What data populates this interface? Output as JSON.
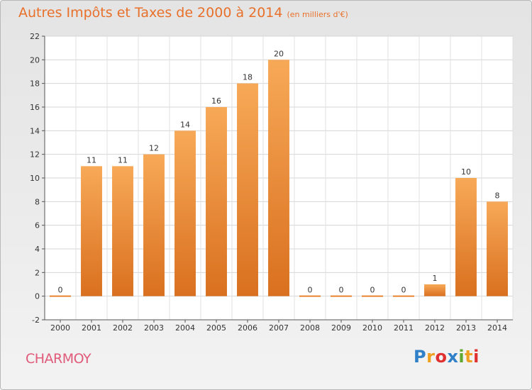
{
  "title": "Autres Impôts et Taxes de 2000 à 2014",
  "unit": "(en milliers d'€)",
  "commune": "CHARMOY",
  "logo": {
    "text": "Proxiti",
    "letters": [
      {
        "ch": "P",
        "color": "#2f80c8"
      },
      {
        "ch": "r",
        "color": "#f0a020"
      },
      {
        "ch": "o",
        "color": "#e03030"
      },
      {
        "ch": "x",
        "color": "#2f80c8"
      },
      {
        "ch": "i",
        "color": "#60a830"
      },
      {
        "ch": "t",
        "color": "#f0a020"
      },
      {
        "ch": "i",
        "color": "#e03030"
      }
    ]
  },
  "chart_data": {
    "type": "bar",
    "categories": [
      "2000",
      "2001",
      "2002",
      "2003",
      "2004",
      "2005",
      "2006",
      "2007",
      "2008",
      "2009",
      "2010",
      "2011",
      "2012",
      "2013",
      "2014"
    ],
    "values": [
      0,
      11,
      11,
      12,
      14,
      16,
      18,
      20,
      0,
      0,
      0,
      0,
      1,
      10,
      8
    ],
    "title": "Autres Impôts et Taxes de 2000 à 2014",
    "subtitle": "(en milliers d'€)",
    "xlabel": "",
    "ylabel": "",
    "ylim": [
      -2,
      22
    ],
    "yticks": [
      -2,
      0,
      2,
      4,
      6,
      8,
      10,
      12,
      14,
      16,
      18,
      20,
      22
    ],
    "grid": true,
    "bar_color": "#e8832f",
    "bar_color_light": "#f7a957"
  }
}
